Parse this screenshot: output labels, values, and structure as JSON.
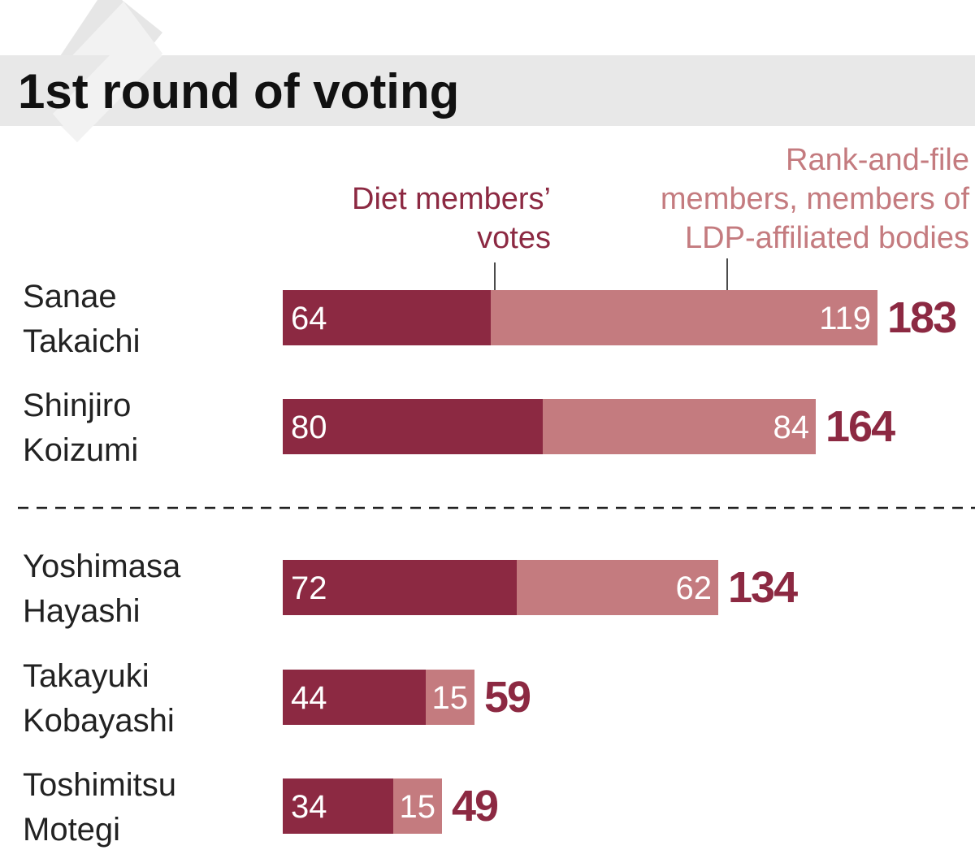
{
  "chart_data": {
    "type": "bar",
    "stacked": true,
    "orientation": "horizontal",
    "title": "1st round of voting",
    "legend": [
      {
        "name": "Diet members’ votes",
        "lines": [
          "Diet members’",
          "votes"
        ],
        "color": "#8c2942"
      },
      {
        "name": "Rank-and-file members, members of LDP-affiliated bodies",
        "lines": [
          "Rank-and-file",
          "members, members of",
          "LDP-affiliated bodies"
        ],
        "color": "#c47b7f"
      }
    ],
    "categories": [
      {
        "name": "Sanae Takaichi",
        "lines": [
          "Sanae",
          "Takaichi"
        ]
      },
      {
        "name": "Shinjiro Koizumi",
        "lines": [
          "Shinjiro",
          "Koizumi"
        ]
      },
      {
        "name": "Yoshimasa Hayashi",
        "lines": [
          "Yoshimasa",
          "Hayashi"
        ]
      },
      {
        "name": "Takayuki Kobayashi",
        "lines": [
          "Takayuki",
          "Kobayashi"
        ]
      },
      {
        "name": "Toshimitsu Motegi",
        "lines": [
          "Toshimitsu",
          "Motegi"
        ]
      }
    ],
    "series": [
      {
        "name": "Diet members’ votes",
        "values": [
          64,
          80,
          72,
          44,
          34
        ]
      },
      {
        "name": "Rank-and-file members, members of LDP-affiliated bodies",
        "values": [
          119,
          84,
          62,
          15,
          15
        ]
      }
    ],
    "totals": [
      183,
      164,
      134,
      59,
      49
    ],
    "runoff_separator_after_index": 1
  }
}
